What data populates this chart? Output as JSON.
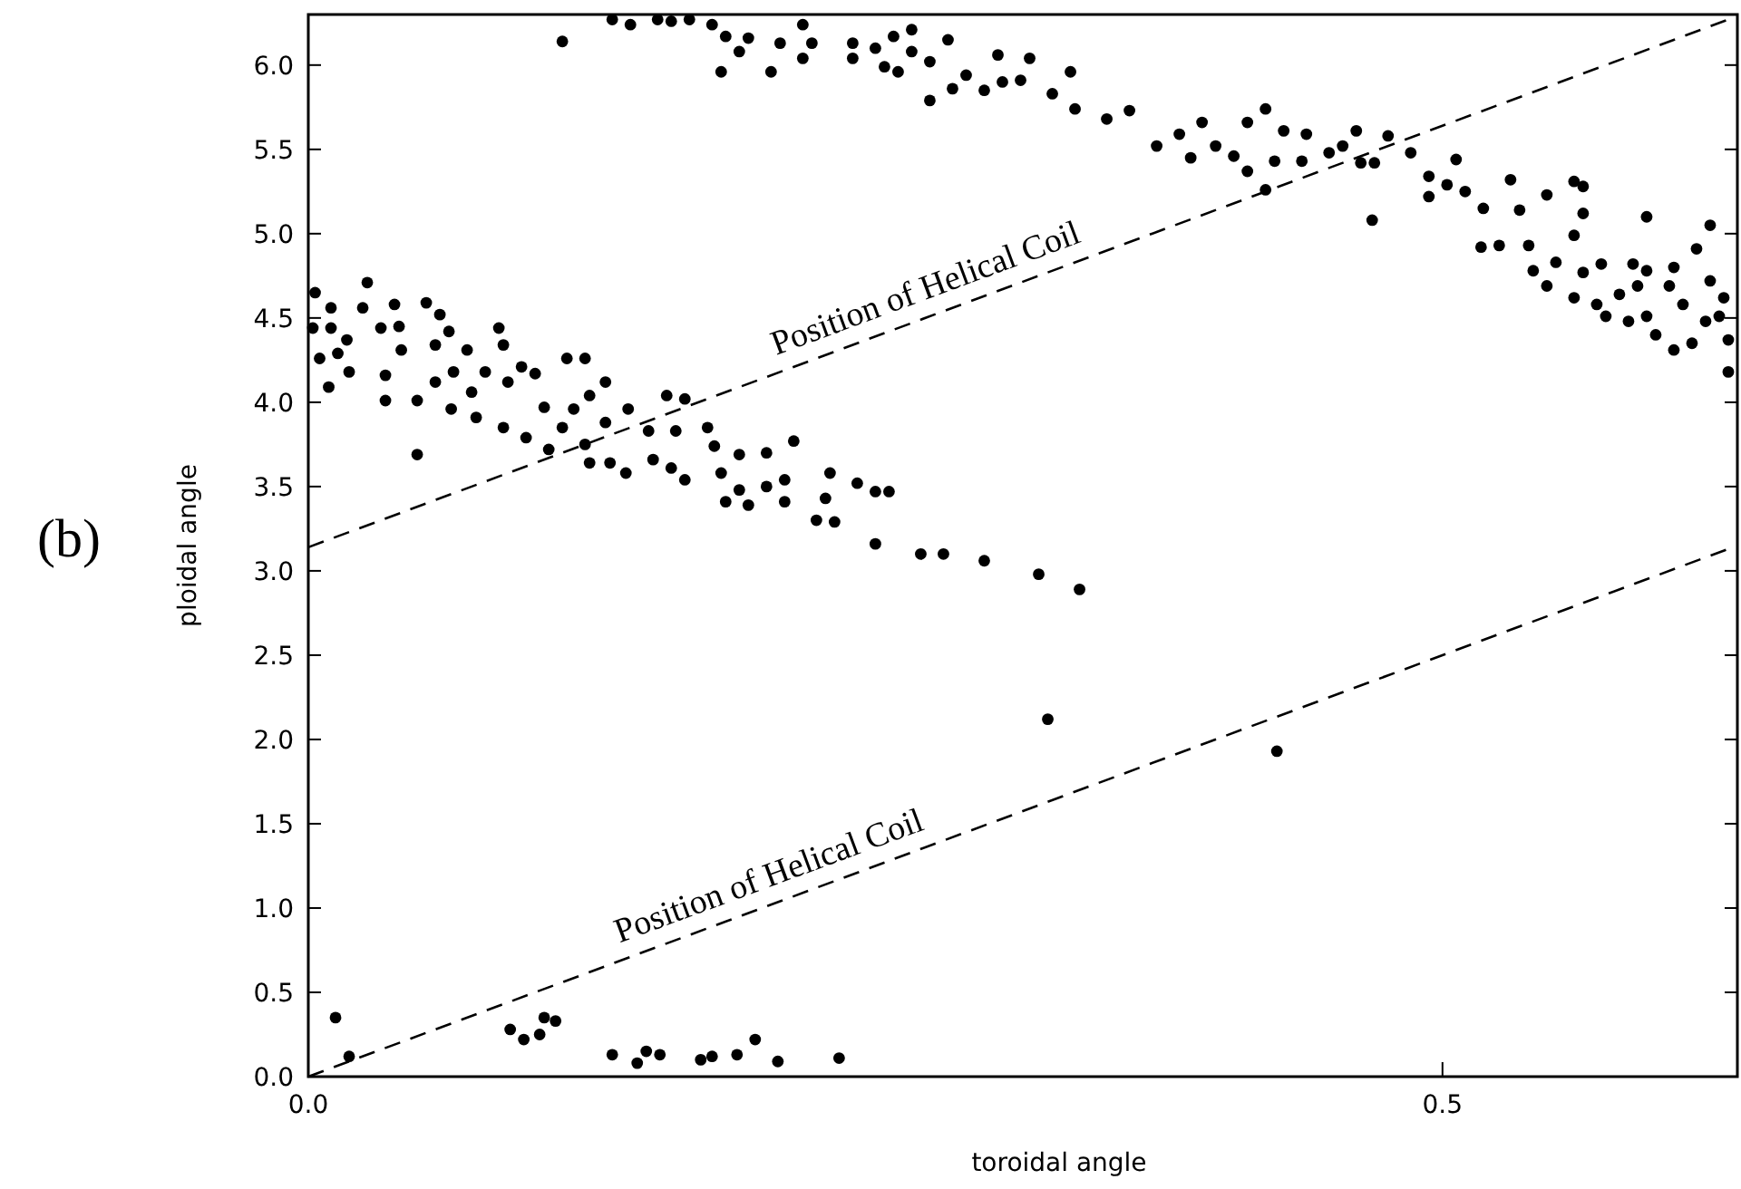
{
  "chart_data": {
    "type": "scatter",
    "xlabel": "toroidal angle",
    "ylabel": "ploidal angle",
    "xlim": [
      0,
      0.63
    ],
    "ylim": [
      0,
      6.3
    ],
    "xticks": [
      {
        "value": 0,
        "label": "0.0"
      },
      0.5
    ],
    "yticks": [
      {
        "value": 0,
        "label": "0.0"
      },
      0.5,
      {
        "value": 1,
        "label": "1.0"
      },
      1.5,
      {
        "value": 2,
        "label": "2.0"
      },
      2.5,
      {
        "value": 3,
        "label": "3.0"
      },
      3.5,
      {
        "value": 4,
        "label": "4.0"
      },
      4.5,
      {
        "value": 5,
        "label": "5.0"
      },
      5.5,
      {
        "value": 6,
        "label": "6.0"
      }
    ],
    "grid": false,
    "annotations": [
      "(b)",
      "Position of Helical Coil",
      "Position of Helical Coil"
    ],
    "series": [
      {
        "marker": "circle",
        "color": "#000000",
        "x": [
          0.012,
          0.018,
          0.089,
          0.095,
          0.102,
          0.104,
          0.109,
          0.134,
          0.145,
          0.149,
          0.155,
          0.173,
          0.178,
          0.189,
          0.197,
          0.207,
          0.234,
          0.326,
          0.427,
          0.003,
          0.002,
          0.01,
          0.01,
          0.005,
          0.017,
          0.013,
          0.009,
          0.018,
          0.026,
          0.024,
          0.038,
          0.032,
          0.04,
          0.052,
          0.058,
          0.034,
          0.034,
          0.048,
          0.041,
          0.056,
          0.062,
          0.07,
          0.056,
          0.064,
          0.072,
          0.063,
          0.078,
          0.084,
          0.086,
          0.088,
          0.094,
          0.1,
          0.074,
          0.086,
          0.048,
          0.114,
          0.122,
          0.104,
          0.096,
          0.106,
          0.112,
          0.117,
          0.124,
          0.131,
          0.122,
          0.124,
          0.133,
          0.14,
          0.131,
          0.141,
          0.15,
          0.158,
          0.166,
          0.152,
          0.16,
          0.166,
          0.162,
          0.176,
          0.179,
          0.19,
          0.202,
          0.214,
          0.182,
          0.19,
          0.184,
          0.194,
          0.202,
          0.21,
          0.21,
          0.224,
          0.232,
          0.23,
          0.228,
          0.242,
          0.25,
          0.256,
          0.25,
          0.27,
          0.28,
          0.298,
          0.322,
          0.34,
          0.112,
          0.134,
          0.142,
          0.154,
          0.16,
          0.168,
          0.178,
          0.184,
          0.194,
          0.19,
          0.182,
          0.204,
          0.208,
          0.218,
          0.222,
          0.218,
          0.24,
          0.24,
          0.25,
          0.258,
          0.266,
          0.254,
          0.26,
          0.266,
          0.274,
          0.282,
          0.274,
          0.284,
          0.29,
          0.298,
          0.304,
          0.306,
          0.314,
          0.318,
          0.328,
          0.336,
          0.338,
          0.352,
          0.362,
          0.374,
          0.384,
          0.389,
          0.394,
          0.4,
          0.408,
          0.414,
          0.414,
          0.422,
          0.426,
          0.43,
          0.438,
          0.44,
          0.45,
          0.456,
          0.462,
          0.464,
          0.47,
          0.476,
          0.486,
          0.422,
          0.469,
          0.494,
          0.506,
          0.494,
          0.502,
          0.51,
          0.53,
          0.518,
          0.534,
          0.546,
          0.558,
          0.562,
          0.562,
          0.558,
          0.517,
          0.525,
          0.538,
          0.59,
          0.618,
          0.612,
          0.54,
          0.55,
          0.546,
          0.558,
          0.562,
          0.57,
          0.568,
          0.578,
          0.584,
          0.59,
          0.586,
          0.572,
          0.582,
          0.59,
          0.594,
          0.6,
          0.602,
          0.606,
          0.602,
          0.61,
          0.616,
          0.618,
          0.624,
          0.622,
          0.626,
          0.626
        ],
        "values": [
          0.35,
          0.12,
          0.28,
          0.22,
          0.25,
          0.35,
          0.33,
          0.13,
          0.08,
          0.15,
          0.13,
          0.1,
          0.12,
          0.13,
          0.22,
          0.09,
          0.11,
          2.12,
          1.93,
          4.65,
          4.44,
          4.56,
          4.44,
          4.26,
          4.37,
          4.29,
          4.09,
          4.18,
          4.71,
          4.56,
          4.58,
          4.44,
          4.45,
          4.59,
          4.52,
          4.16,
          4.01,
          4.01,
          4.31,
          4.34,
          4.42,
          4.31,
          4.12,
          4.18,
          4.06,
          3.96,
          4.18,
          4.44,
          4.34,
          4.12,
          4.21,
          4.17,
          3.91,
          3.85,
          3.69,
          4.26,
          4.26,
          3.97,
          3.79,
          3.72,
          3.85,
          3.96,
          4.04,
          4.12,
          3.75,
          3.64,
          3.64,
          3.58,
          3.88,
          3.96,
          3.83,
          4.04,
          4.02,
          3.66,
          3.61,
          3.54,
          3.83,
          3.85,
          3.74,
          3.69,
          3.7,
          3.77,
          3.58,
          3.48,
          3.41,
          3.39,
          3.5,
          3.54,
          3.41,
          3.3,
          3.29,
          3.58,
          3.43,
          3.52,
          3.47,
          3.47,
          3.16,
          3.1,
          3.1,
          3.06,
          2.98,
          2.89,
          6.14,
          6.27,
          6.24,
          6.27,
          6.26,
          6.27,
          6.24,
          6.17,
          6.16,
          6.08,
          5.96,
          5.96,
          6.13,
          6.24,
          6.13,
          6.04,
          6.13,
          6.04,
          6.1,
          6.17,
          6.21,
          5.99,
          5.96,
          6.08,
          6.02,
          6.15,
          5.79,
          5.86,
          5.94,
          5.85,
          6.06,
          5.9,
          5.91,
          6.04,
          5.83,
          5.96,
          5.74,
          5.68,
          5.73,
          5.52,
          5.59,
          5.45,
          5.66,
          5.52,
          5.46,
          5.37,
          5.66,
          5.74,
          5.43,
          5.61,
          5.43,
          5.59,
          5.48,
          5.52,
          5.61,
          5.42,
          5.42,
          5.58,
          5.48,
          5.26,
          5.08,
          5.34,
          5.44,
          5.22,
          5.29,
          5.25,
          5.32,
          5.15,
          5.14,
          5.23,
          5.31,
          5.28,
          5.12,
          4.99,
          4.92,
          4.93,
          4.93,
          5.1,
          5.05,
          4.91,
          4.78,
          4.83,
          4.69,
          4.62,
          4.77,
          4.82,
          4.58,
          4.64,
          4.82,
          4.78,
          4.69,
          4.51,
          4.48,
          4.51,
          4.4,
          4.69,
          4.8,
          4.58,
          4.31,
          4.35,
          4.48,
          4.72,
          4.62,
          4.51,
          4.18,
          4.37
        ]
      },
      {
        "type": "line",
        "color": "#000000",
        "line_style": "dashed",
        "x": [
          0,
          0.628
        ],
        "values": [
          3.14,
          6.28
        ]
      },
      {
        "type": "line",
        "color": "#000000",
        "line_style": "dashed",
        "x": [
          0,
          0.628
        ],
        "values": [
          0,
          3.14
        ]
      }
    ]
  }
}
